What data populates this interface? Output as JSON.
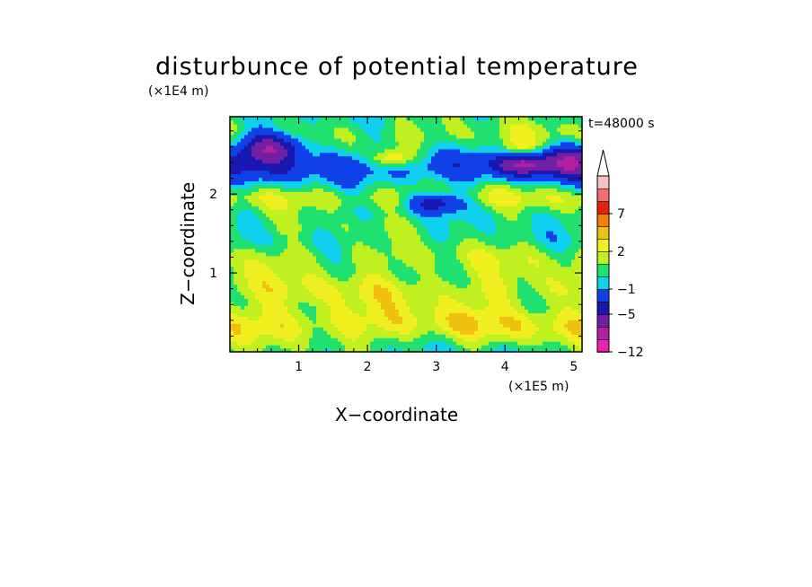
{
  "chart_data": {
    "type": "heatmap",
    "title": "disturbunce of potential temperature",
    "time_label": "t=48000 s",
    "xlabel": "X−coordinate",
    "ylabel": "Z−coordinate",
    "x_unit": "(×1E5 m)",
    "y_unit": "(×1E4 m)",
    "xlim": [
      0,
      5.12
    ],
    "ylim": [
      0,
      2.98
    ],
    "x_ticks": [
      "1",
      "2",
      "3",
      "4",
      "5"
    ],
    "y_ticks": [
      "1",
      "2"
    ],
    "colorbar": {
      "levels": [
        -12,
        -9,
        -7,
        -5,
        -3,
        -1,
        0,
        1,
        2,
        3,
        5,
        7,
        9,
        12
      ],
      "colors": [
        "#f020b0",
        "#b020a0",
        "#7020a0",
        "#1818b0",
        "#1040e8",
        "#10d0f0",
        "#20e070",
        "#c0f020",
        "#f0f020",
        "#f0c010",
        "#f08010",
        "#e82010",
        "#f07070",
        "#f8c0c0"
      ],
      "tick_labels": [
        "7",
        "2",
        "−1",
        "−5",
        "−12"
      ],
      "extend": "max"
    },
    "description_bands": [
      {
        "z_from": 0.0,
        "z_to": 0.2,
        "value": 1.5
      },
      {
        "z_from": 0.2,
        "z_to": 0.5,
        "value": 3
      },
      {
        "z_from": 0.5,
        "z_to": 0.95,
        "value": 2.5
      },
      {
        "z_from": 0.95,
        "z_to": 1.4,
        "value": 1.5
      },
      {
        "z_from": 1.4,
        "z_to": 1.8,
        "value": 0.5
      },
      {
        "z_from": 1.8,
        "z_to": 2.2,
        "value": 1.5
      },
      {
        "z_from": 2.2,
        "z_to": 2.6,
        "value": -1.5
      },
      {
        "z_from": 2.6,
        "z_to": 2.98,
        "value": 1
      }
    ]
  },
  "icons": {
    "colorbar_arrow": "triangle-up-icon"
  }
}
